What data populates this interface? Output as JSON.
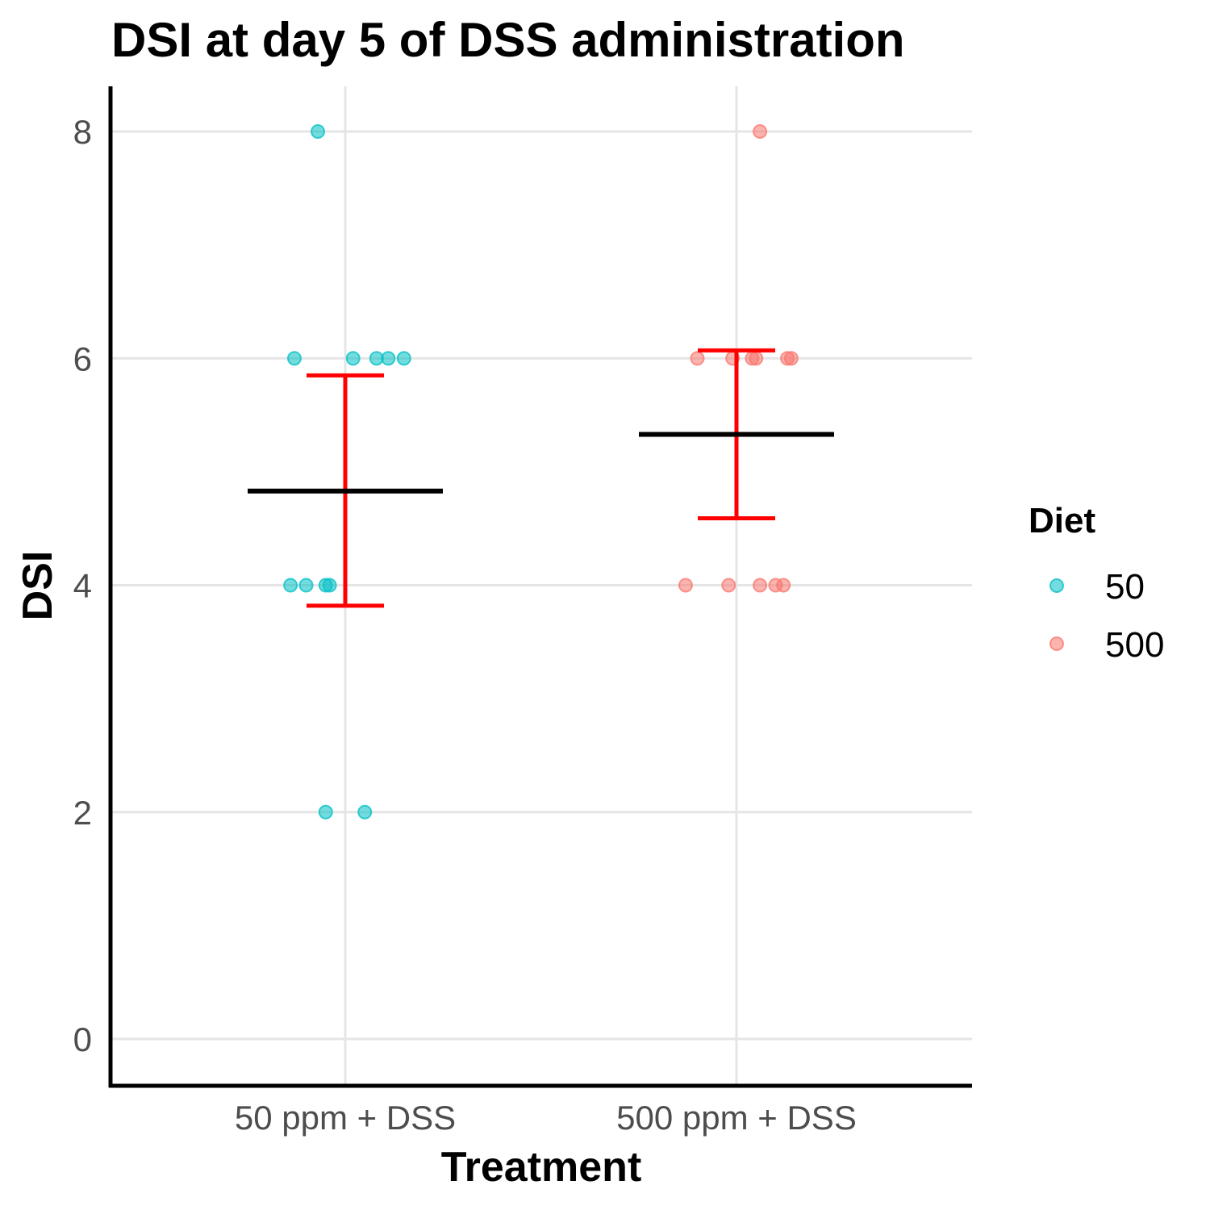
{
  "chart_data": {
    "type": "scatter",
    "title": "DSI at day 5 of DSS administration",
    "xlabel": "Treatment",
    "ylabel": "DSI",
    "categories": [
      "50 ppm + DSS",
      "500 ppm + DSS"
    ],
    "ylim": [
      -0.4,
      8.4
    ],
    "yticks": [
      0,
      2,
      4,
      6,
      8
    ],
    "grid": true,
    "legend": {
      "title": "Diet",
      "position": "right",
      "entries": [
        {
          "label": "50",
          "color": "#00BFC4"
        },
        {
          "label": "500",
          "color": "#F8766D"
        }
      ]
    },
    "series": [
      {
        "name": "50",
        "color": "#00BFC4",
        "category": "50 ppm + DSS",
        "points": [
          {
            "jitter": -0.07,
            "y": 8
          },
          {
            "jitter": -0.13,
            "y": 6
          },
          {
            "jitter": 0.02,
            "y": 6
          },
          {
            "jitter": 0.08,
            "y": 6
          },
          {
            "jitter": 0.11,
            "y": 6
          },
          {
            "jitter": 0.15,
            "y": 6
          },
          {
            "jitter": -0.14,
            "y": 4
          },
          {
            "jitter": -0.1,
            "y": 4
          },
          {
            "jitter": -0.05,
            "y": 4
          },
          {
            "jitter": -0.04,
            "y": 4
          },
          {
            "jitter": -0.05,
            "y": 2
          },
          {
            "jitter": 0.05,
            "y": 2
          }
        ],
        "mean": 4.83,
        "error_low": 3.82,
        "error_high": 5.85
      },
      {
        "name": "500",
        "color": "#F8766D",
        "category": "500 ppm + DSS",
        "points": [
          {
            "jitter": 0.06,
            "y": 8
          },
          {
            "jitter": -0.1,
            "y": 6
          },
          {
            "jitter": -0.01,
            "y": 6
          },
          {
            "jitter": 0.04,
            "y": 6
          },
          {
            "jitter": 0.05,
            "y": 6
          },
          {
            "jitter": 0.13,
            "y": 6
          },
          {
            "jitter": 0.14,
            "y": 6
          },
          {
            "jitter": -0.13,
            "y": 4
          },
          {
            "jitter": -0.02,
            "y": 4
          },
          {
            "jitter": 0.06,
            "y": 4
          },
          {
            "jitter": 0.1,
            "y": 4
          },
          {
            "jitter": 0.12,
            "y": 4
          }
        ],
        "mean": 5.33,
        "error_low": 4.59,
        "error_high": 6.07
      }
    ]
  }
}
